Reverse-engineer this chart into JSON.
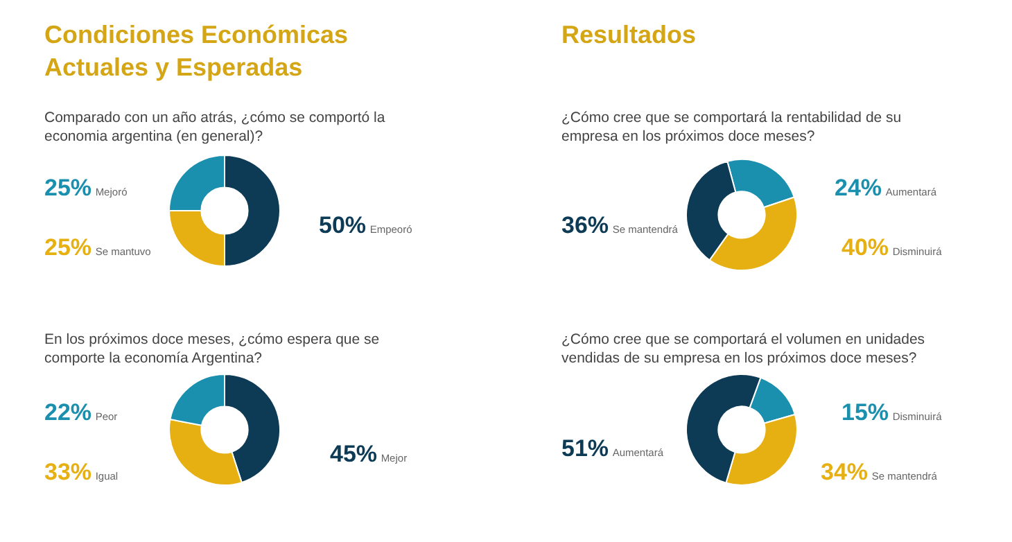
{
  "chart_data": [
    {
      "type": "donut",
      "annotations": [
        "Condiciones Económicas Actuales y Esperadas"
      ],
      "title": "Comparado con un año atrás, ¿cómo se comportó la economia argentina (en general)?",
      "categories": [
        "Empeoró",
        "Se mantuvo",
        "Mejoró"
      ],
      "values": [
        50,
        25,
        25
      ],
      "colors": [
        "#0d3b56",
        "#e6b012",
        "#1a8fae"
      ],
      "value_labels": [
        "50%",
        "25%",
        "25%"
      ]
    },
    {
      "type": "donut",
      "title": "En los próximos doce meses, ¿cómo espera que se comporte la economía Argentina?",
      "categories": [
        "Mejor",
        "Igual",
        "Peor"
      ],
      "values": [
        45,
        33,
        22
      ],
      "colors": [
        "#0d3b56",
        "#e6b012",
        "#1a8fae"
      ],
      "value_labels": [
        "45%",
        "33%",
        "22%"
      ]
    },
    {
      "type": "donut",
      "annotations": [
        "Resultados"
      ],
      "title": "¿Cómo cree que se comportará la rentabilidad de su empresa en los próximos doce meses?",
      "categories": [
        "Aumentará",
        "Disminuirá",
        "Se mantendrá"
      ],
      "values": [
        24,
        40,
        36
      ],
      "colors": [
        "#1a8fae",
        "#e6b012",
        "#0d3b56"
      ],
      "value_labels": [
        "24%",
        "40%",
        "36%"
      ]
    },
    {
      "type": "donut",
      "title": "¿Cómo cree que se comportará el volumen en unidades vendidas de su empresa en los próximos doce meses?",
      "categories": [
        "Disminuirá",
        "Se mantendrá",
        "Aumentará"
      ],
      "values": [
        15,
        34,
        51
      ],
      "colors": [
        "#1a8fae",
        "#e6b012",
        "#0d3b56"
      ],
      "value_labels": [
        "15%",
        "34%",
        "51%"
      ]
    }
  ]
}
